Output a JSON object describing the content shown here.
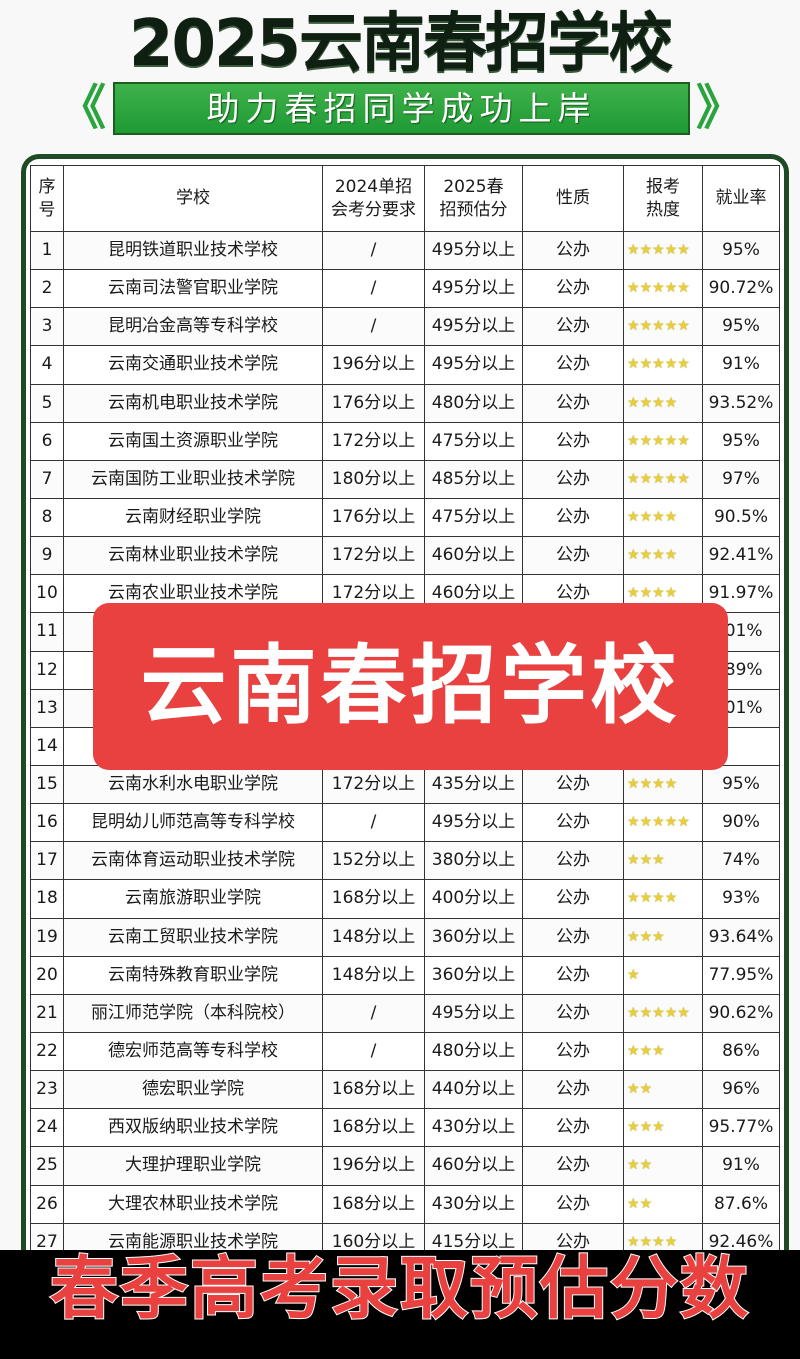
{
  "title": "2025云南春招学校",
  "banner": "助力春招同学成功上岸",
  "overlay_text": "云南春招学校",
  "bottom_caption": "春季高考录取预估分数",
  "colors": {
    "accent_green": "#2aa43c",
    "frame_green": "#1e4a25",
    "overlay_red": "#e8413f",
    "star_gold": "#e8cf3a"
  },
  "table": {
    "headers": [
      "序号",
      "学校",
      "2024单招会考分要求",
      "2025春招预估分",
      "性质",
      "报考热度",
      "就业率"
    ],
    "rows": [
      {
        "no": "1",
        "school": "昆明铁道职业技术学校",
        "req2024": "/",
        "est2025": "495分以上",
        "type": "公办",
        "stars": 5,
        "rate": "95%"
      },
      {
        "no": "2",
        "school": "云南司法警官职业学院",
        "req2024": "/",
        "est2025": "495分以上",
        "type": "公办",
        "stars": 5,
        "rate": "90.72%"
      },
      {
        "no": "3",
        "school": "昆明冶金高等专科学校",
        "req2024": "/",
        "est2025": "495分以上",
        "type": "公办",
        "stars": 5,
        "rate": "95%"
      },
      {
        "no": "4",
        "school": "云南交通职业技术学院",
        "req2024": "196分以上",
        "est2025": "495分以上",
        "type": "公办",
        "stars": 5,
        "rate": "91%"
      },
      {
        "no": "5",
        "school": "云南机电职业技术学院",
        "req2024": "176分以上",
        "est2025": "480分以上",
        "type": "公办",
        "stars": 4,
        "rate": "93.52%"
      },
      {
        "no": "6",
        "school": "云南国土资源职业学院",
        "req2024": "172分以上",
        "est2025": "475分以上",
        "type": "公办",
        "stars": 5,
        "rate": "95%"
      },
      {
        "no": "7",
        "school": "云南国防工业职业技术学院",
        "req2024": "180分以上",
        "est2025": "485分以上",
        "type": "公办",
        "stars": 5,
        "rate": "97%"
      },
      {
        "no": "8",
        "school": "云南财经职业学院",
        "req2024": "176分以上",
        "est2025": "475分以上",
        "type": "公办",
        "stars": 4,
        "rate": "90.5%"
      },
      {
        "no": "9",
        "school": "云南林业职业技术学院",
        "req2024": "172分以上",
        "est2025": "460分以上",
        "type": "公办",
        "stars": 4,
        "rate": "92.41%"
      },
      {
        "no": "10",
        "school": "云南农业职业技术学院",
        "req2024": "172分以上",
        "est2025": "460分以上",
        "type": "公办",
        "stars": 4,
        "rate": "91.97%"
      },
      {
        "no": "11",
        "school": "",
        "req2024": "",
        "est2025": "",
        "type": "",
        "stars": 0,
        "rate": ".01%"
      },
      {
        "no": "12",
        "school": "",
        "req2024": "",
        "est2025": "",
        "type": "",
        "stars": 0,
        "rate": ".89%"
      },
      {
        "no": "13",
        "school": "",
        "req2024": "",
        "est2025": "",
        "type": "",
        "stars": 0,
        "rate": ".01%"
      },
      {
        "no": "14",
        "school": "",
        "req2024": "",
        "est2025": "",
        "type": "",
        "stars": 0,
        "rate": ""
      },
      {
        "no": "15",
        "school": "云南水利水电职业学院",
        "req2024": "172分以上",
        "est2025": "435分以上",
        "type": "公办",
        "stars": 4,
        "rate": "95%"
      },
      {
        "no": "16",
        "school": "昆明幼儿师范高等专科学校",
        "req2024": "/",
        "est2025": "495分以上",
        "type": "公办",
        "stars": 5,
        "rate": "90%"
      },
      {
        "no": "17",
        "school": "云南体育运动职业技术学院",
        "req2024": "152分以上",
        "est2025": "380分以上",
        "type": "公办",
        "stars": 3,
        "rate": "74%"
      },
      {
        "no": "18",
        "school": "云南旅游职业学院",
        "req2024": "168分以上",
        "est2025": "400分以上",
        "type": "公办",
        "stars": 4,
        "rate": "93%"
      },
      {
        "no": "19",
        "school": "云南工贸职业技术学院",
        "req2024": "148分以上",
        "est2025": "360分以上",
        "type": "公办",
        "stars": 3,
        "rate": "93.64%"
      },
      {
        "no": "20",
        "school": "云南特殊教育职业学院",
        "req2024": "148分以上",
        "est2025": "360分以上",
        "type": "公办",
        "stars": 1,
        "rate": "77.95%"
      },
      {
        "no": "21",
        "school": "丽江师范学院（本科院校）",
        "req2024": "/",
        "est2025": "495分以上",
        "type": "公办",
        "stars": 5,
        "rate": "90.62%"
      },
      {
        "no": "22",
        "school": "德宏师范高等专科学校",
        "req2024": "/",
        "est2025": "480分以上",
        "type": "公办",
        "stars": 3,
        "rate": "86%"
      },
      {
        "no": "23",
        "school": "德宏职业学院",
        "req2024": "168分以上",
        "est2025": "440分以上",
        "type": "公办",
        "stars": 2,
        "rate": "96%"
      },
      {
        "no": "24",
        "school": "西双版纳职业技术学院",
        "req2024": "168分以上",
        "est2025": "430分以上",
        "type": "公办",
        "stars": 3,
        "rate": "95.77%"
      },
      {
        "no": "25",
        "school": "大理护理职业学院",
        "req2024": "196分以上",
        "est2025": "460分以上",
        "type": "公办",
        "stars": 2,
        "rate": "91%"
      },
      {
        "no": "26",
        "school": "大理农林职业技术学院",
        "req2024": "168分以上",
        "est2025": "430分以上",
        "type": "公办",
        "stars": 2,
        "rate": "87.6%"
      },
      {
        "no": "27",
        "school": "云南能源职业技术学院",
        "req2024": "160分以上",
        "est2025": "415分以上",
        "type": "公办",
        "stars": 4,
        "rate": "92.46%"
      }
    ]
  }
}
